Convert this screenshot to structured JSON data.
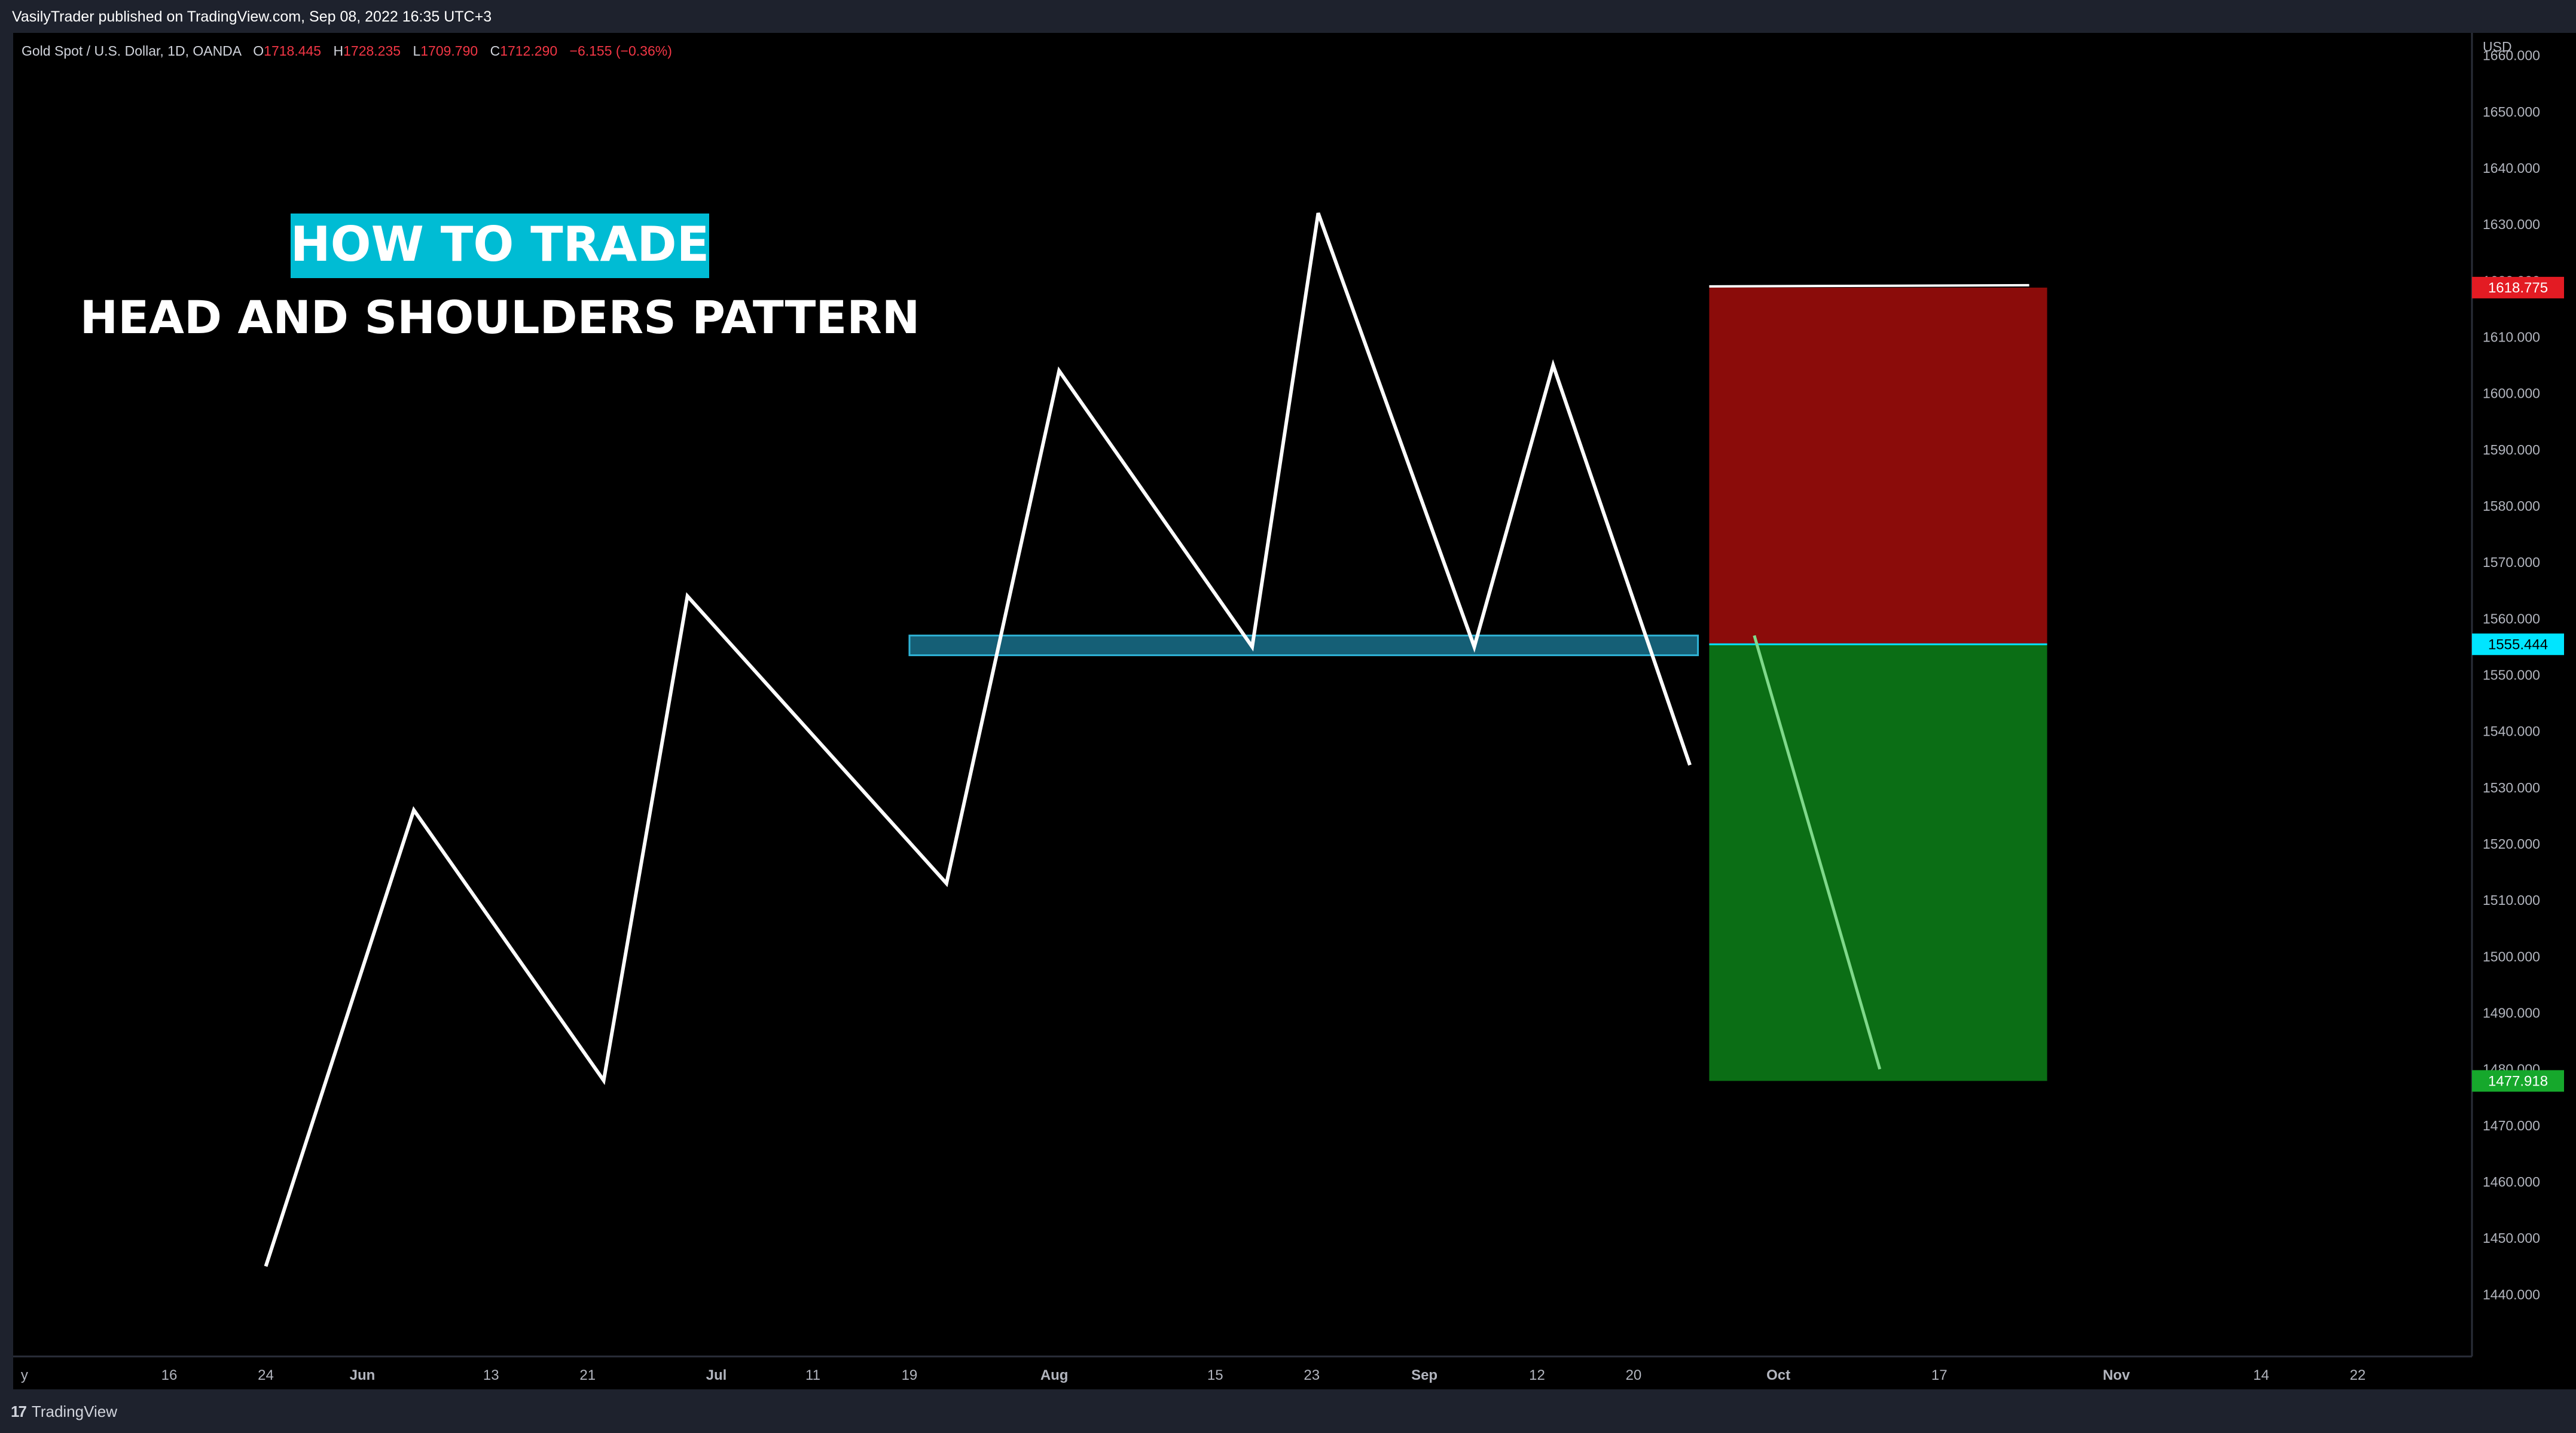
{
  "header": {
    "published_by": "VasilyTrader published on TradingView.com, Sep 08, 2022 16:35 UTC+3"
  },
  "legend": {
    "symbol": "Gold Spot / U.S. Dollar, 1D, OANDA",
    "o_label": "O",
    "o_value": "1718.445",
    "h_label": "H",
    "h_value": "1728.235",
    "l_label": "L",
    "l_value": "1709.790",
    "c_label": "C",
    "c_value": "1712.290",
    "change": "−6.155 (−0.36%)"
  },
  "banner": {
    "title": "HOW TO TRADE",
    "subtitle": "HEAD AND SHOULDERS PATTERN"
  },
  "footer": {
    "logo_mark": "17",
    "logo_text": "TradingView"
  },
  "colors": {
    "background": "#000000",
    "panel": "#1e222d",
    "line": "#ffffff",
    "neckline": "#1e88a8",
    "stop_zone": "#8b0c0a",
    "target_zone": "#0b6e15",
    "banner": "#00bcd4",
    "red_value": "#f23645",
    "entry_tag": "#00e5ff",
    "stop_tag": "#e31b23",
    "target_tag": "#16a82c"
  },
  "chart_data": {
    "type": "line",
    "title": "",
    "xlabel": "",
    "ylabel": "",
    "currency": "USD",
    "ylim": [
      1429,
      1664
    ],
    "xlim": [
      -2.7,
      150.1
    ],
    "yticks": [
      "1440.000",
      "1450.000",
      "1460.000",
      "1470.000",
      "1480.000",
      "1490.000",
      "1500.000",
      "1510.000",
      "1520.000",
      "1530.000",
      "1540.000",
      "1550.000",
      "1560.000",
      "1570.000",
      "1580.000",
      "1590.000",
      "1600.000",
      "1610.000",
      "1620.000",
      "1630.000",
      "1640.000",
      "1650.000",
      "1660.000"
    ],
    "xticks": [
      {
        "label": "y",
        "x": -2
      },
      {
        "label": "16",
        "x": 7
      },
      {
        "label": "24",
        "x": 13
      },
      {
        "label": "Jun",
        "x": 19
      },
      {
        "label": "13",
        "x": 27
      },
      {
        "label": "21",
        "x": 33
      },
      {
        "label": "Jul",
        "x": 41
      },
      {
        "label": "11",
        "x": 47
      },
      {
        "label": "19",
        "x": 53
      },
      {
        "label": "Aug",
        "x": 62
      },
      {
        "label": "15",
        "x": 72
      },
      {
        "label": "23",
        "x": 78
      },
      {
        "label": "Sep",
        "x": 85
      },
      {
        "label": "12",
        "x": 92
      },
      {
        "label": "20",
        "x": 98
      },
      {
        "label": "Oct",
        "x": 107
      },
      {
        "label": "17",
        "x": 117
      },
      {
        "label": "Nov",
        "x": 128
      },
      {
        "label": "14",
        "x": 137
      },
      {
        "label": "22",
        "x": 143
      }
    ],
    "series": [
      {
        "points": [
          [
            13,
            1445
          ],
          [
            22.2,
            1526
          ],
          [
            34,
            1478
          ],
          [
            39.2,
            1564
          ],
          [
            55.3,
            1513
          ],
          [
            62.3,
            1604
          ],
          [
            74.3,
            1555
          ],
          [
            78.4,
            1632
          ],
          [
            88.1,
            1555
          ],
          [
            93,
            1605
          ],
          [
            101.5,
            1534
          ]
        ]
      },
      {
        "points": [
          [
            105.5,
            1557
          ],
          [
            113.3,
            1480
          ]
        ]
      }
    ],
    "neckline": {
      "x_start": 53,
      "x_end": 102,
      "y_low": 1553.5,
      "y_high": 1557
    },
    "stop_zone": {
      "x_start": 102.7,
      "x_end": 123.7,
      "y_low": 1555.444,
      "y_high": 1618.775
    },
    "target_zone": {
      "x_start": 102.7,
      "x_end": 123.7,
      "y_low": 1477.918,
      "y_high": 1555.444
    },
    "price_tags": [
      {
        "value": "1618.775",
        "y": 1618.775,
        "kind": "stop"
      },
      {
        "value": "1555.444",
        "y": 1555.444,
        "kind": "entry"
      },
      {
        "value": "1477.918",
        "y": 1477.918,
        "kind": "target"
      }
    ]
  }
}
